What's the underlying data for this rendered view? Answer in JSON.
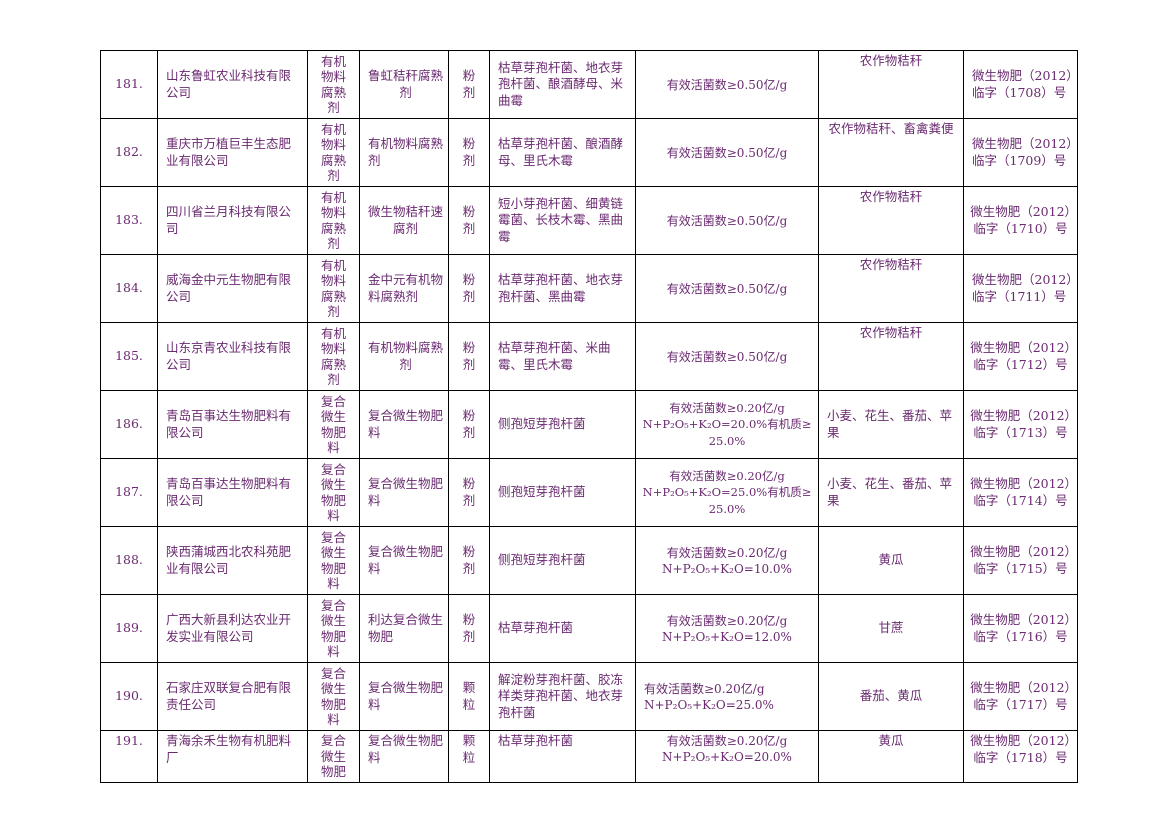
{
  "rows": [
    {
      "no": "181.",
      "company": "山东鲁虹农业科技有限公司",
      "type": "有机物料腐熟剂",
      "product": "鲁虹秸秆腐熟剂",
      "form": "粉剂",
      "strains": "枯草芽孢杆菌、地衣芽孢杆菌、酿酒酵母、米曲霉",
      "indicator": "有效活菌数≥0.50亿/g",
      "crop": "农作物秸秆",
      "reg": "微生物肥（2012）临字（1708）号"
    },
    {
      "no": "182.",
      "company": "重庆市万植巨丰生态肥业有限公司",
      "type": "有机物料腐熟剂",
      "product": "有机物料腐熟剂",
      "form": "粉剂",
      "strains": "枯草芽孢杆菌、酿酒酵母、里氏木霉",
      "indicator": "有效活菌数≥0.50亿/g",
      "crop": "农作物秸秆、畜禽粪便",
      "reg": "微生物肥（2012）临字（1709）号"
    },
    {
      "no": "183.",
      "company": "四川省兰月科技有限公司",
      "type": "有机物料腐熟剂",
      "product": "微生物秸秆速腐剂",
      "form": "粉剂",
      "strains": "短小芽孢杆菌、细黄链霉菌、长枝木霉、黑曲霉",
      "indicator": "有效活菌数≥0.50亿/g",
      "crop": "农作物秸秆",
      "reg": "微生物肥（2012）临字（1710）号"
    },
    {
      "no": "184.",
      "company": "威海金中元生物肥有限公司",
      "type": "有机物料腐熟剂",
      "product": "金中元有机物料腐熟剂",
      "form": "粉剂",
      "strains": "枯草芽孢杆菌、地衣芽孢杆菌、黑曲霉",
      "indicator": "有效活菌数≥0.50亿/g",
      "crop": "农作物秸秆",
      "reg": "微生物肥（2012）临字（1711）号"
    },
    {
      "no": "185.",
      "company": "山东京青农业科技有限公司",
      "type": "有机物料腐熟剂",
      "product": "有机物料腐熟剂",
      "form": "粉剂",
      "strains": "枯草芽孢杆菌、米曲霉、里氏木霉",
      "indicator": "有效活菌数≥0.50亿/g",
      "crop": "农作物秸秆",
      "reg": "微生物肥（2012）临字（1712）号"
    },
    {
      "no": "186.",
      "company": "青岛百事达生物肥料有限公司",
      "type": "复合微生物肥料",
      "product": "复合微生物肥料",
      "form": "粉剂",
      "strains": "侧孢短芽孢杆菌",
      "indicator": "有效活菌数≥0.20亿/g\nN+P₂O₅+K₂O=20.0%有机质≥25.0%",
      "crop": "小麦、花生、番茄、苹果",
      "reg": "微生物肥（2012）临字（1713）号"
    },
    {
      "no": "187.",
      "company": "青岛百事达生物肥料有限公司",
      "type": "复合微生物肥料",
      "product": "复合微生物肥料",
      "form": "粉剂",
      "strains": "侧孢短芽孢杆菌",
      "indicator": "有效活菌数≥0.20亿/g\nN+P₂O₅+K₂O=25.0%有机质≥25.0%",
      "crop": "小麦、花生、番茄、苹果",
      "reg": "微生物肥（2012）临字（1714）号"
    },
    {
      "no": "188.",
      "company": "陕西蒲城西北农科苑肥业有限公司",
      "type": "复合微生物肥料",
      "product": "复合微生物肥料",
      "form": "粉剂",
      "strains": "侧孢短芽孢杆菌",
      "indicator": "有效活菌数≥0.20亿/g\nN+P₂O₅+K₂O=10.0%",
      "crop": "黄瓜",
      "reg": "微生物肥（2012）临字（1715）号"
    },
    {
      "no": "189.",
      "company": "广西大新县利达农业开发实业有限公司",
      "type": "复合微生物肥料",
      "product": "利达复合微生物肥",
      "form": "粉剂",
      "strains": "枯草芽孢杆菌",
      "indicator": "有效活菌数≥0.20亿/g\nN+P₂O₅+K₂O=12.0%",
      "crop": "甘蔗",
      "reg": "微生物肥（2012）临字（1716）号"
    },
    {
      "no": "190.",
      "company": "石家庄双联复合肥有限责任公司",
      "type": "复合微生物肥料",
      "product": "复合微生物肥料",
      "form": "颗粒",
      "strains": "解淀粉芽孢杆菌、胶冻样类芽孢杆菌、地衣芽孢杆菌",
      "indicator": "有效活菌数≥0.20亿/g\nN+P₂O₅+K₂O=25.0%",
      "crop": "番茄、黄瓜",
      "reg": "微生物肥（2012）临字（1717）号"
    },
    {
      "no": "191.",
      "company": "青海余禾生物有机肥料厂",
      "type": "复合微生物肥",
      "product": "复合微生物肥料",
      "form": "颗粒",
      "strains": "枯草芽孢杆菌",
      "indicator": "有效活菌数≥0.20亿/g\nN+P₂O₅+K₂O=20.0%",
      "crop": "黄瓜",
      "reg": "微生物肥（2012）临字（1718）号"
    }
  ]
}
